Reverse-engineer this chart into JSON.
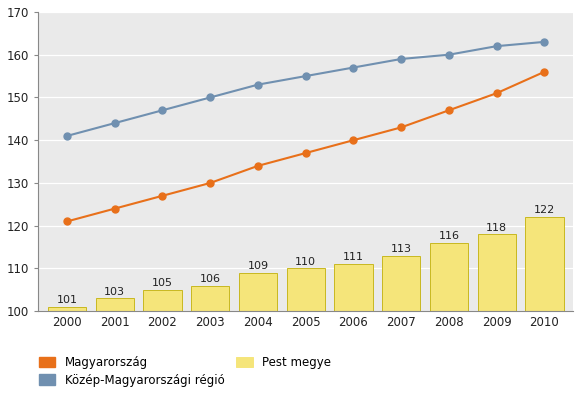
{
  "years": [
    2000,
    2001,
    2002,
    2003,
    2004,
    2005,
    2006,
    2007,
    2008,
    2009,
    2010
  ],
  "magyarorszag": [
    121,
    124,
    127,
    130,
    134,
    137,
    140,
    143,
    147,
    151,
    156
  ],
  "kozep_magyarorszagi": [
    141,
    144,
    147,
    150,
    153,
    155,
    157,
    159,
    160,
    162,
    163
  ],
  "pest_megye": [
    101,
    103,
    105,
    106,
    109,
    110,
    111,
    113,
    116,
    118,
    122
  ],
  "bar_color": "#f5e57a",
  "bar_edge_color": "#c8b820",
  "magyarorszag_color": "#e8701a",
  "kozep_color": "#7090b0",
  "ylim": [
    100,
    170
  ],
  "yticks": [
    100,
    110,
    120,
    130,
    140,
    150,
    160,
    170
  ],
  "bg_color": "#eaeaea",
  "legend_magyarorszag": "Magyarország",
  "legend_kozep": "Közép-Magyarországi régió",
  "legend_pest": "Pest megye"
}
